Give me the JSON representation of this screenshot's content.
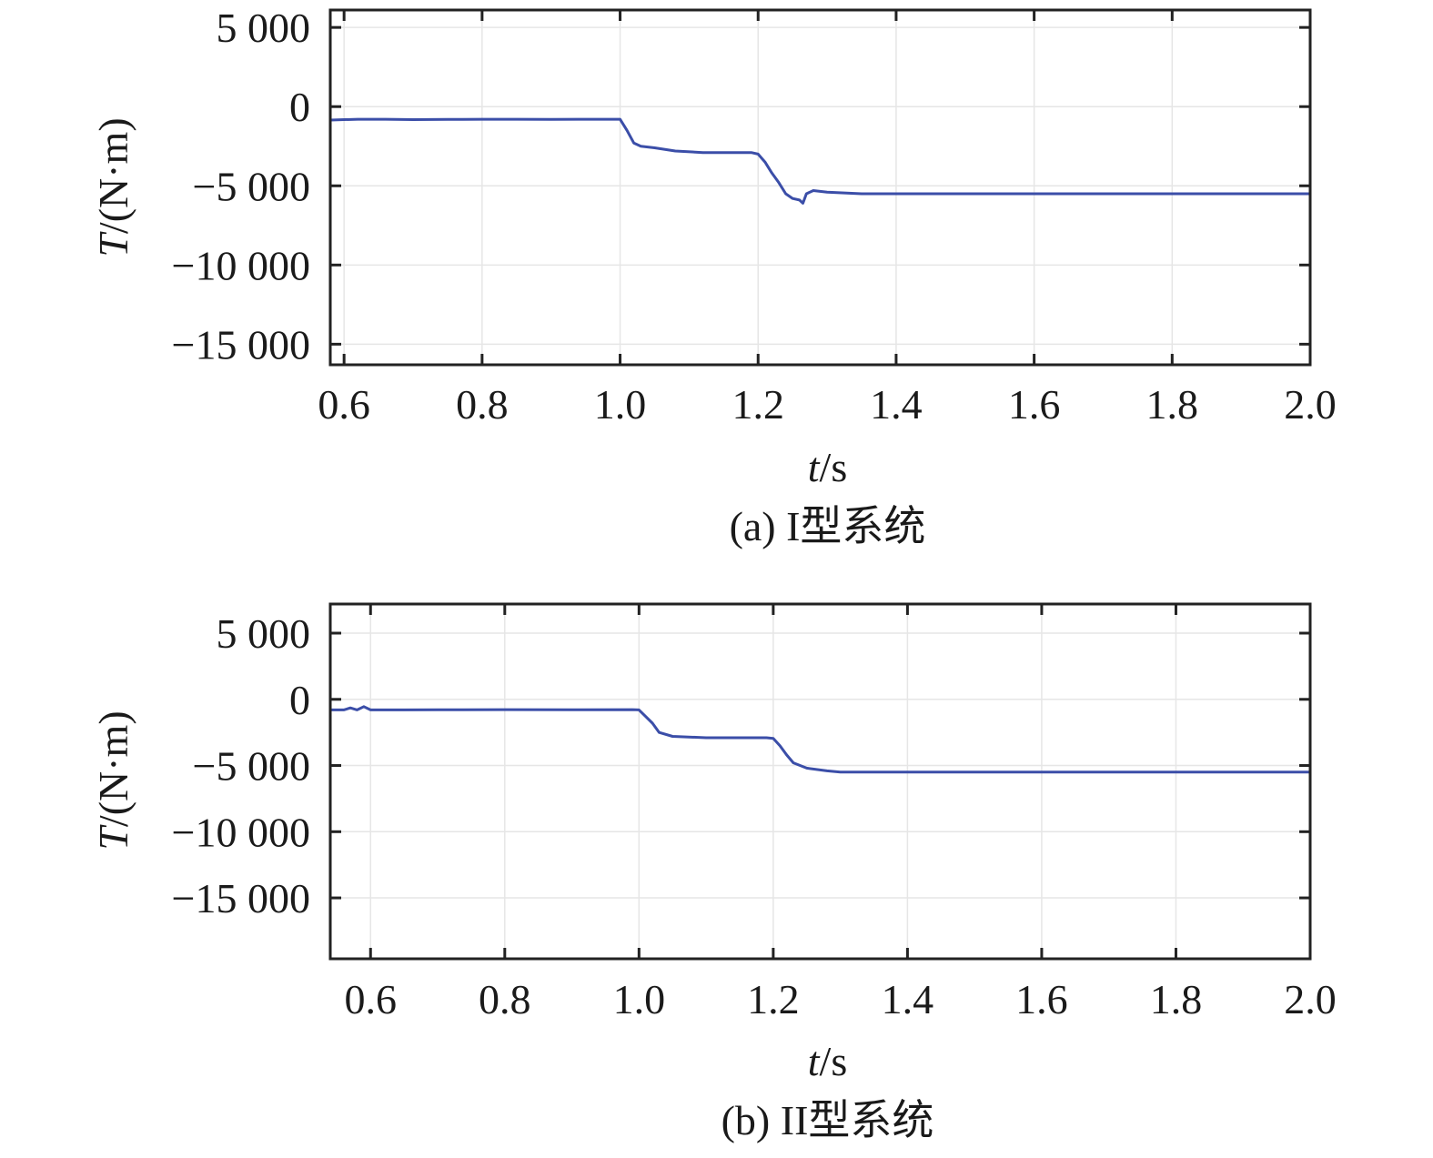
{
  "chart_data": [
    {
      "type": "line",
      "caption": "(a) I型系统",
      "xlabel_var": "t",
      "xlabel_unit": "/s",
      "ylabel_var": "T",
      "ylabel_unit": "/(N·m)",
      "xlim": [
        0.58,
        2.0
      ],
      "ylim": [
        -16300,
        6100
      ],
      "x_ticks": [
        0.6,
        0.8,
        1.0,
        1.2,
        1.4,
        1.6,
        1.8,
        2.0
      ],
      "x_tick_labels": [
        "0.6",
        "0.8",
        "1.0",
        "1.2",
        "1.4",
        "1.6",
        "1.8",
        "2.0"
      ],
      "y_ticks": [
        5000,
        0,
        -5000,
        -10000,
        -15000
      ],
      "y_tick_labels": [
        "5 000",
        "0",
        "−5 000",
        "−10 000",
        "−15 000"
      ],
      "grid": true,
      "series": [
        {
          "color": "#3b4ea8",
          "x": [
            0.58,
            0.62,
            0.66,
            0.7,
            0.75,
            0.8,
            0.85,
            0.9,
            0.95,
            0.99,
            1.0,
            1.01,
            1.02,
            1.03,
            1.05,
            1.08,
            1.12,
            1.16,
            1.19,
            1.2,
            1.21,
            1.22,
            1.23,
            1.24,
            1.25,
            1.26,
            1.265,
            1.27,
            1.28,
            1.3,
            1.35,
            1.4,
            1.5,
            1.6,
            1.7,
            1.8,
            1.9,
            2.0
          ],
          "y": [
            -850,
            -800,
            -800,
            -820,
            -810,
            -800,
            -800,
            -810,
            -800,
            -800,
            -800,
            -1500,
            -2300,
            -2500,
            -2600,
            -2800,
            -2900,
            -2900,
            -2900,
            -3000,
            -3500,
            -4200,
            -4800,
            -5500,
            -5800,
            -5900,
            -6100,
            -5500,
            -5300,
            -5400,
            -5500,
            -5500,
            -5500,
            -5500,
            -5500,
            -5500,
            -5500,
            -5500
          ]
        }
      ]
    },
    {
      "type": "line",
      "caption": "(b) II型系统",
      "xlabel_var": "t",
      "xlabel_unit": "/s",
      "ylabel_var": "T",
      "ylabel_unit": "/(N·m)",
      "xlim": [
        0.54,
        2.0
      ],
      "ylim": [
        -19600,
        7200
      ],
      "x_ticks": [
        0.6,
        0.8,
        1.0,
        1.2,
        1.4,
        1.6,
        1.8,
        2.0
      ],
      "x_tick_labels": [
        "0.6",
        "0.8",
        "1.0",
        "1.2",
        "1.4",
        "1.6",
        "1.8",
        "2.0"
      ],
      "y_ticks": [
        5000,
        0,
        -5000,
        -10000,
        -15000
      ],
      "y_tick_labels": [
        "5 000",
        "0",
        "−5 000",
        "−10 000",
        "−15 000"
      ],
      "grid": true,
      "series": [
        {
          "color": "#3b4ea8",
          "x": [
            0.54,
            0.56,
            0.57,
            0.58,
            0.59,
            0.6,
            0.65,
            0.7,
            0.8,
            0.9,
            0.99,
            1.0,
            1.01,
            1.02,
            1.03,
            1.05,
            1.1,
            1.15,
            1.19,
            1.2,
            1.21,
            1.22,
            1.23,
            1.25,
            1.28,
            1.3,
            1.4,
            1.5,
            1.6,
            1.7,
            1.8,
            1.9,
            2.0
          ],
          "y": [
            -800,
            -800,
            -650,
            -800,
            -550,
            -800,
            -800,
            -790,
            -780,
            -790,
            -780,
            -800,
            -1300,
            -1800,
            -2500,
            -2800,
            -2900,
            -2900,
            -2900,
            -2950,
            -3500,
            -4200,
            -4800,
            -5200,
            -5400,
            -5500,
            -5500,
            -5500,
            -5500,
            -5500,
            -5500,
            -5500,
            -5500
          ]
        }
      ]
    }
  ]
}
